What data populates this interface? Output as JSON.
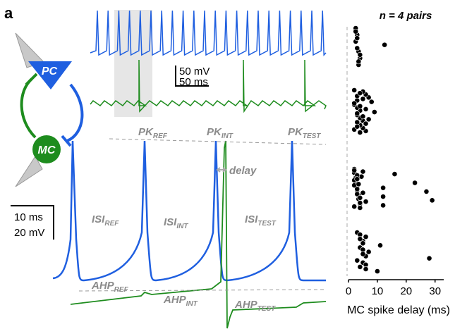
{
  "panel_label": "a",
  "scale_bar_top": {
    "voltage": "50 mV",
    "time": "50 ms"
  },
  "scale_bar_bottom": {
    "time": "10 ms",
    "voltage": "20 mV"
  },
  "cells": {
    "pc": "PC",
    "mc": "MC"
  },
  "annotations": {
    "pk_ref": {
      "main": "PK",
      "sub": "REF"
    },
    "pk_int": {
      "main": "PK",
      "sub": "INT"
    },
    "pk_test": {
      "main": "PK",
      "sub": "TEST"
    },
    "isi_ref": {
      "main": "ISI",
      "sub": "REF"
    },
    "isi_int": {
      "main": "ISI",
      "sub": "INT"
    },
    "isi_test": {
      "main": "ISI",
      "sub": "TEST"
    },
    "ahp_ref": {
      "main": "AHP",
      "sub": "REF"
    },
    "ahp_int": {
      "main": "AHP",
      "sub": "INT"
    },
    "ahp_test": {
      "main": "AHP",
      "sub": "TEST"
    },
    "delay": "delay"
  },
  "chart_data": {
    "type": "strip",
    "title": "n = 4 pairs",
    "x_label": "MC spike delay (ms)",
    "xlim": [
      0,
      33
    ],
    "xticks": [
      0,
      10,
      20,
      30
    ],
    "series": [
      {
        "color": "#000000",
        "values": [
          2.5,
          3.5,
          3,
          4,
          2.5,
          3.5,
          3,
          2.5,
          4,
          3,
          3.5,
          12.5
        ]
      },
      {
        "color": "#000000",
        "values": [
          2,
          3,
          4,
          5,
          6,
          7,
          3,
          4,
          5,
          6,
          2,
          3,
          4,
          5,
          8,
          9,
          3,
          4,
          5,
          6,
          7,
          2,
          3,
          4,
          5,
          3,
          4,
          2,
          3,
          6
        ]
      },
      {
        "color": "#000000",
        "values": [
          2,
          2.5,
          3,
          3.5,
          4,
          2,
          2.5,
          3,
          3.5,
          4,
          4.5,
          2,
          3,
          4,
          5,
          2,
          3,
          4,
          2,
          3,
          3.5,
          5,
          6,
          2,
          3,
          12,
          12,
          12,
          16,
          23,
          27,
          29
        ]
      },
      {
        "color": "#000000",
        "values": [
          3,
          4,
          5,
          6,
          7,
          4,
          5,
          6,
          10,
          11,
          3,
          4,
          5,
          6,
          4,
          5,
          6,
          5,
          28
        ]
      }
    ]
  }
}
